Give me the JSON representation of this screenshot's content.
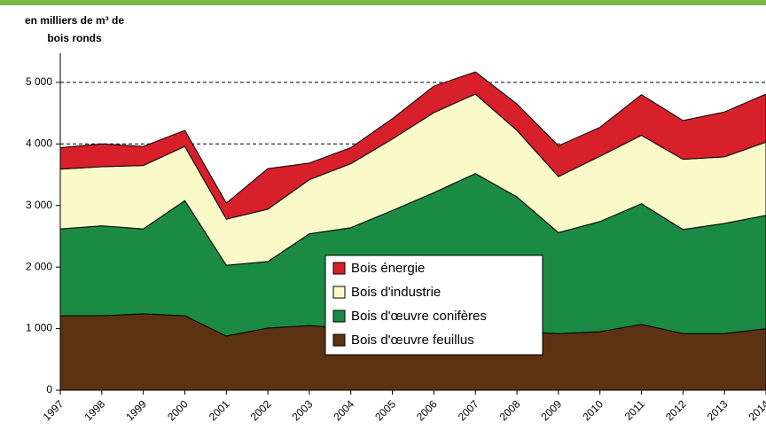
{
  "chart_data": {
    "type": "stacked_area",
    "y_label": [
      "en milliers de m³ de",
      "bois ronds"
    ],
    "x": [
      "1997",
      "1998",
      "1999",
      "2000",
      "2001",
      "2002",
      "2003",
      "2004",
      "2005",
      "2006",
      "2007",
      "2008",
      "2009",
      "2010",
      "2011",
      "2012",
      "2013",
      "2014"
    ],
    "series": [
      {
        "name": "Bois d'œuvre feuillus",
        "color": "#5c3312",
        "values": [
          1210,
          1210,
          1240,
          1210,
          880,
          1010,
          1050,
          1000,
          980,
          970,
          960,
          950,
          920,
          950,
          1070,
          920,
          920,
          1000
        ]
      },
      {
        "name": "Bois d'œuvre conifères",
        "color": "#1b8a44",
        "values": [
          1410,
          1460,
          1380,
          1870,
          1150,
          1080,
          1490,
          1640,
          1940,
          2240,
          2560,
          2190,
          1640,
          1790,
          1960,
          1690,
          1790,
          1840
        ]
      },
      {
        "name": "Bois d'industrie",
        "color": "#fafac8",
        "values": [
          970,
          960,
          1030,
          880,
          750,
          850,
          880,
          1040,
          1160,
          1300,
          1290,
          1080,
          910,
          1060,
          1110,
          1140,
          1080,
          1190
        ]
      },
      {
        "name": "Bois énergie",
        "color": "#d7202a",
        "values": [
          350,
          370,
          310,
          260,
          260,
          660,
          270,
          260,
          330,
          430,
          360,
          430,
          500,
          470,
          660,
          630,
          730,
          780
        ]
      }
    ],
    "ylim": [
      0,
      5200
    ],
    "yticks": [
      0,
      {
        "value": 1000,
        "label": "1 000"
      },
      {
        "value": 2000,
        "label": "2 000"
      },
      {
        "value": 3000,
        "label": "3 000"
      },
      {
        "value": 4000,
        "label": "4 000"
      },
      {
        "value": 5000,
        "label": "5 000"
      }
    ],
    "grid": true
  }
}
